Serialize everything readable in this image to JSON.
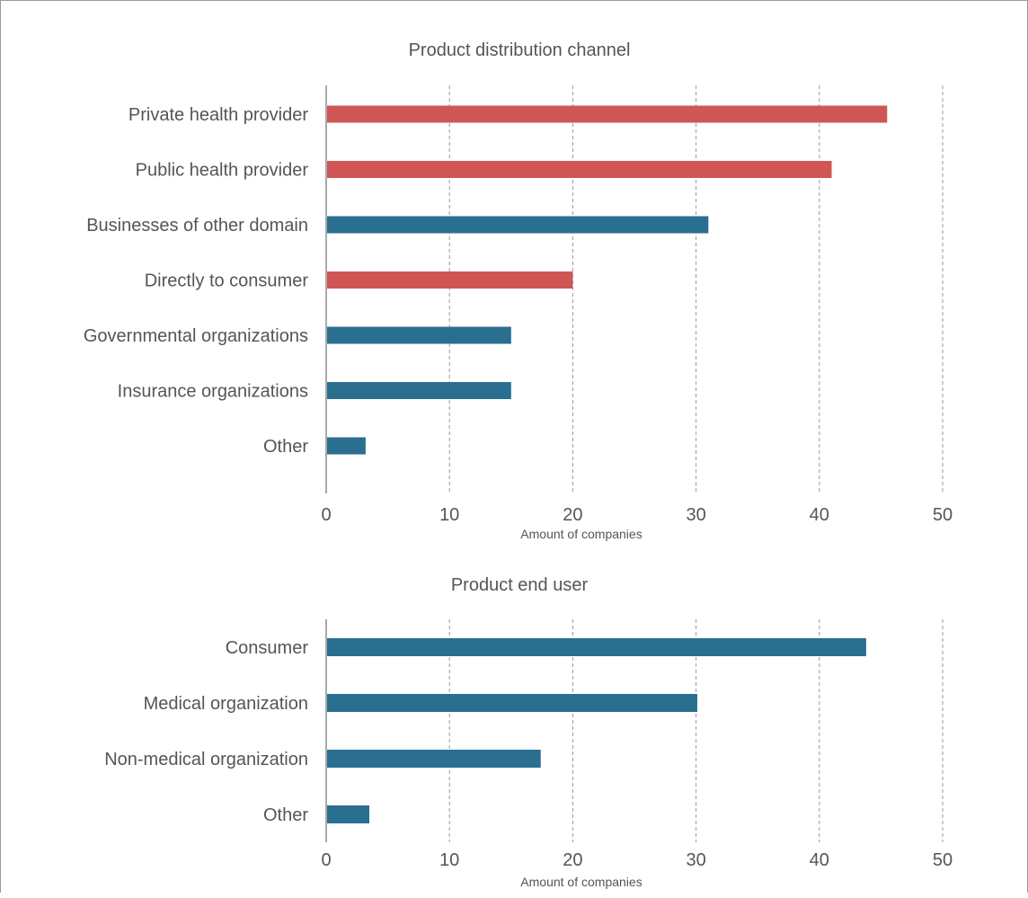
{
  "chart_data": [
    {
      "type": "bar",
      "orientation": "horizontal",
      "title": "Product distribution channel",
      "xlabel": "Amount of companies",
      "ylabel": "",
      "xlim": [
        0,
        50
      ],
      "xticks": [
        0,
        10,
        20,
        30,
        40,
        50
      ],
      "grid": "vertical dashed",
      "categories": [
        "Private health provider",
        "Public health provider",
        "Businesses of other domain",
        "Directly to consumer",
        "Governmental organizations",
        "Insurance organizations",
        "Other"
      ],
      "values": [
        45.5,
        41,
        31,
        20,
        15,
        15,
        3.2
      ],
      "bar_colors": [
        "#d05656",
        "#d05656",
        "#2a6f8f",
        "#d05656",
        "#2a6f8f",
        "#2a6f8f",
        "#2a6f8f"
      ]
    },
    {
      "type": "bar",
      "orientation": "horizontal",
      "title": "Product end user",
      "xlabel": "Amount of companies",
      "ylabel": "",
      "xlim": [
        0,
        50
      ],
      "xticks": [
        0,
        10,
        20,
        30,
        40,
        50
      ],
      "grid": "vertical dashed",
      "categories": [
        "Consumer",
        "Medical organization",
        "Non-medical organization",
        "Other"
      ],
      "values": [
        43.8,
        30.1,
        17.4,
        3.5
      ],
      "bar_colors": [
        "#2a6f8f",
        "#2a6f8f",
        "#2a6f8f",
        "#2a6f8f"
      ]
    }
  ],
  "colors": {
    "text": "#555555",
    "axis": "#aaaaaa",
    "grid": "#9a9a9a"
  }
}
